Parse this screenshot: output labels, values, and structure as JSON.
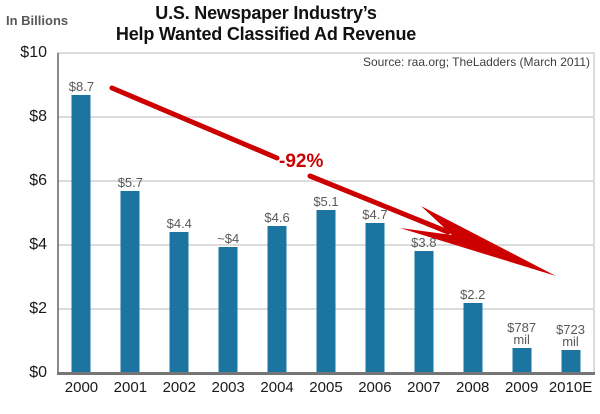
{
  "header": {
    "title_line1": "U.S. Newspaper Industry’s",
    "title_line2": "Help Wanted Classified Ad Revenue",
    "units_label": "In Billions",
    "source": "Source: raa.org; TheLadders (March 2011)"
  },
  "annotation": {
    "label": "-92%"
  },
  "colors": {
    "bar": "#1C75A1",
    "arrow": "#CC0000",
    "grid": "#DCDCDC",
    "axis": "#767676",
    "value_label": "#595959"
  },
  "chart_data": {
    "type": "bar",
    "title": "U.S. Newspaper Industry’s Help Wanted Classified Ad Revenue",
    "subtitle": "Source: raa.org; TheLadders (March 2011)",
    "xlabel": "",
    "ylabel": "In Billions",
    "ylim": [
      0,
      10
    ],
    "grid": "horizontal",
    "legend": "none",
    "categories": [
      "2000",
      "2001",
      "2002",
      "2003",
      "2004",
      "2005",
      "2006",
      "2007",
      "2008",
      "2009",
      "2010E"
    ],
    "values": [
      8.7,
      5.7,
      4.4,
      3.95,
      4.6,
      5.1,
      4.7,
      3.8,
      2.2,
      0.787,
      0.723
    ],
    "bar_labels": [
      [
        "$8.7"
      ],
      [
        "$5.7"
      ],
      [
        "$4.4"
      ],
      [
        "~$4"
      ],
      [
        "$4.6"
      ],
      [
        "$5.1"
      ],
      [
        "$4.7"
      ],
      [
        "$3.8"
      ],
      [
        "$2.2"
      ],
      [
        "$787",
        "mil"
      ],
      [
        "$723",
        "mil"
      ]
    ],
    "yticks": [
      {
        "label": "$0",
        "value": 0
      },
      {
        "label": "$2",
        "value": 2
      },
      {
        "label": "$4",
        "value": 4
      },
      {
        "label": "$6",
        "value": 6
      },
      {
        "label": "$8",
        "value": 8
      },
      {
        "label": "$10",
        "value": 10
      }
    ],
    "annotations": [
      {
        "text": "-92%",
        "color": "#CC0000"
      }
    ]
  }
}
